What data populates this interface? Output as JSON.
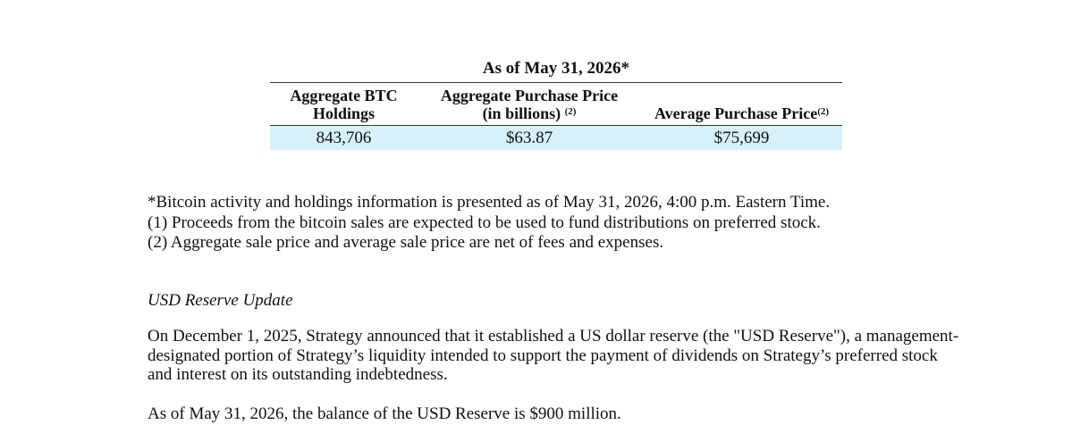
{
  "table": {
    "title": "As of May 31, 2026*",
    "headers": {
      "btc_line1": "Aggregate BTC",
      "btc_line2": "Holdings",
      "agg_line1": "Aggregate Purchase Price",
      "agg_line2": "(in billions)",
      "agg_note": "(2)",
      "avg": "Average Purchase Price",
      "avg_note": "(2)"
    },
    "values": {
      "btc_holdings": "843,706",
      "aggregate_price": "$63.87",
      "average_price": "$75,699"
    }
  },
  "footnotes": [
    "*Bitcoin activity and holdings information is presented as of May 31, 2026, 4:00 p.m. Eastern Time.",
    "(1) Proceeds from the bitcoin sales are expected to be used to fund distributions on preferred stock.",
    "(2) Aggregate sale price and average sale price are net of fees and expenses."
  ],
  "section": {
    "heading": "USD Reserve Update",
    "paragraph1_lines": [
      "On December 1, 2025, Strategy announced that it established a US dollar reserve (the \"USD Reserve\"), a management-",
      "designated portion of Strategy’s liquidity intended to support the payment of dividends on Strategy’s preferred stock",
      "and interest on its outstanding indebtedness."
    ],
    "paragraph2": "As of May 31, 2026, the balance of the USD Reserve is $900 million."
  },
  "colors": {
    "highlight_row": "#d6f1fb",
    "rule": "#333333"
  }
}
